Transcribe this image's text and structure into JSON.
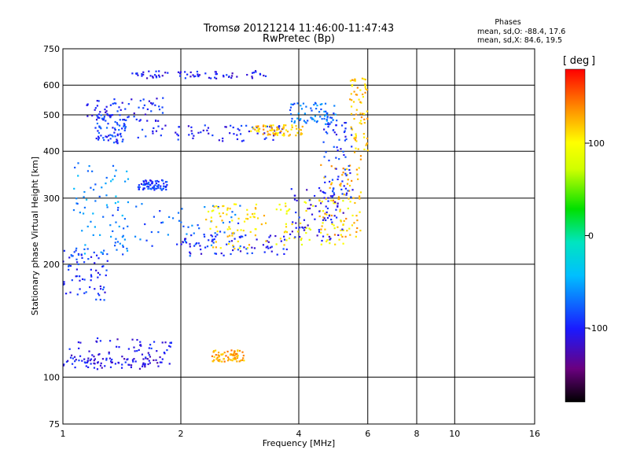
{
  "header": {
    "title_line1": "Tromsø 20121214 11:46:00-11:47:43",
    "title_line2": "RwPretec (Bp)",
    "phases_title": "Phases",
    "phases_o": "mean, sd,O: -88.4, 17.6",
    "phases_x": "mean, sd,X:  84.6, 19.5"
  },
  "colorbar": {
    "unit": "deg",
    "tick_labels": [
      "100",
      "0",
      "-100"
    ],
    "tick_values": [
      100,
      0,
      -100
    ],
    "range": [
      -180,
      180
    ]
  },
  "chart_data": {
    "type": "scatter",
    "xlabel": "Frequency [MHz]",
    "ylabel": "Stationary phase Virtual Height [km]",
    "x_scale": "log",
    "y_scale": "log",
    "xlim": [
      1,
      16
    ],
    "ylim": [
      75,
      750
    ],
    "x_ticks": [
      1,
      2,
      4,
      6,
      8,
      10,
      16
    ],
    "x_tick_labels": [
      "1",
      "2",
      "4",
      "6",
      "8",
      "10",
      "16"
    ],
    "y_ticks": [
      75,
      100,
      200,
      300,
      400,
      500,
      600,
      750
    ],
    "y_tick_labels": [
      "75",
      "100",
      "200",
      "300",
      "400",
      "500",
      "600",
      "750"
    ],
    "grid": true,
    "color_by": "phase [deg]",
    "clusters": [
      {
        "x": [
          1.0,
          1.8
        ],
        "y": [
          105,
          115
        ],
        "phase": -110
      },
      {
        "x": [
          1.02,
          1.9
        ],
        "y": [
          108,
          128
        ],
        "phase": -105
      },
      {
        "x": [
          1.0,
          1.3
        ],
        "y": [
          160,
          220
        ],
        "phase": -95
      },
      {
        "x": [
          1.05,
          1.5
        ],
        "y": [
          210,
          390
        ],
        "phase": -60
      },
      {
        "x": [
          1.3,
          2.9
        ],
        "y": [
          210,
          290
        ],
        "phase": -75
      },
      {
        "x": [
          2.0,
          3.8
        ],
        "y": [
          212,
          240
        ],
        "phase": -100
      },
      {
        "x": [
          2.3,
          3.3
        ],
        "y": [
          220,
          290
        ],
        "phase": 110
      },
      {
        "x": [
          3.5,
          5.5
        ],
        "y": [
          225,
          300
        ],
        "phase": 100
      },
      {
        "x": [
          4.5,
          5.8
        ],
        "y": [
          235,
          370
        ],
        "phase": 125
      },
      {
        "x": [
          3.8,
          5.2
        ],
        "y": [
          230,
          320
        ],
        "phase": -105
      },
      {
        "x": [
          4.6,
          5.5
        ],
        "y": [
          300,
          480
        ],
        "phase": -95
      },
      {
        "x": [
          5.4,
          6.0
        ],
        "y": [
          380,
          630
        ],
        "phase": 120
      },
      {
        "x": [
          1.55,
          3.7
        ],
        "y": [
          425,
          470
        ],
        "phase": -100
      },
      {
        "x": [
          3.0,
          4.1
        ],
        "y": [
          440,
          470
        ],
        "phase": 120
      },
      {
        "x": [
          3.8,
          5.0
        ],
        "y": [
          470,
          540
        ],
        "phase": -70
      },
      {
        "x": [
          1.5,
          3.4
        ],
        "y": [
          625,
          655
        ],
        "phase": -105
      },
      {
        "x": [
          1.2,
          1.45
        ],
        "y": [
          420,
          500
        ],
        "phase": -90
      },
      {
        "x": [
          1.55,
          1.85
        ],
        "y": [
          315,
          335
        ],
        "phase": -90
      },
      {
        "x": [
          2.4,
          2.9
        ],
        "y": [
          110,
          118
        ],
        "phase": 130
      },
      {
        "x": [
          1.15,
          1.8
        ],
        "y": [
          480,
          560
        ],
        "phase": -100
      }
    ]
  }
}
